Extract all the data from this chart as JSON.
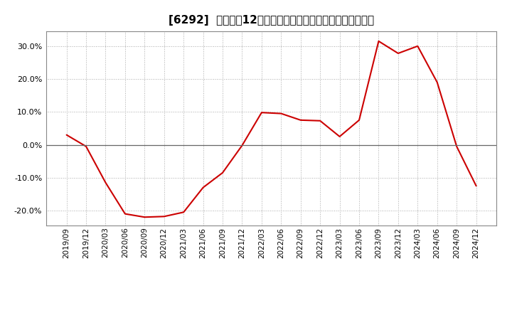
{
  "title": "[6292]  売上高の12か月移動合計の対前年同期増減率の推移",
  "line_color": "#cc0000",
  "background_color": "#ffffff",
  "plot_bg_color": "#ffffff",
  "grid_color": "#aaaaaa",
  "ylim": [
    -0.245,
    0.345
  ],
  "yticks": [
    -0.2,
    -0.1,
    0.0,
    0.1,
    0.2,
    0.3
  ],
  "dates": [
    "2019/09",
    "2019/12",
    "2020/03",
    "2020/06",
    "2020/09",
    "2020/12",
    "2021/03",
    "2021/06",
    "2021/09",
    "2021/12",
    "2022/03",
    "2022/06",
    "2022/09",
    "2022/12",
    "2023/03",
    "2023/06",
    "2023/09",
    "2023/12",
    "2024/03",
    "2024/06",
    "2024/09",
    "2024/12"
  ],
  "values": [
    0.03,
    -0.005,
    -0.115,
    -0.21,
    -0.22,
    -0.218,
    -0.205,
    -0.13,
    -0.085,
    -0.002,
    0.098,
    0.095,
    0.075,
    0.073,
    0.025,
    0.075,
    0.315,
    0.278,
    0.3,
    0.19,
    -0.005,
    -0.125
  ],
  "title_fontsize": 11,
  "tick_fontsize": 8,
  "xtick_fontsize": 7.5
}
